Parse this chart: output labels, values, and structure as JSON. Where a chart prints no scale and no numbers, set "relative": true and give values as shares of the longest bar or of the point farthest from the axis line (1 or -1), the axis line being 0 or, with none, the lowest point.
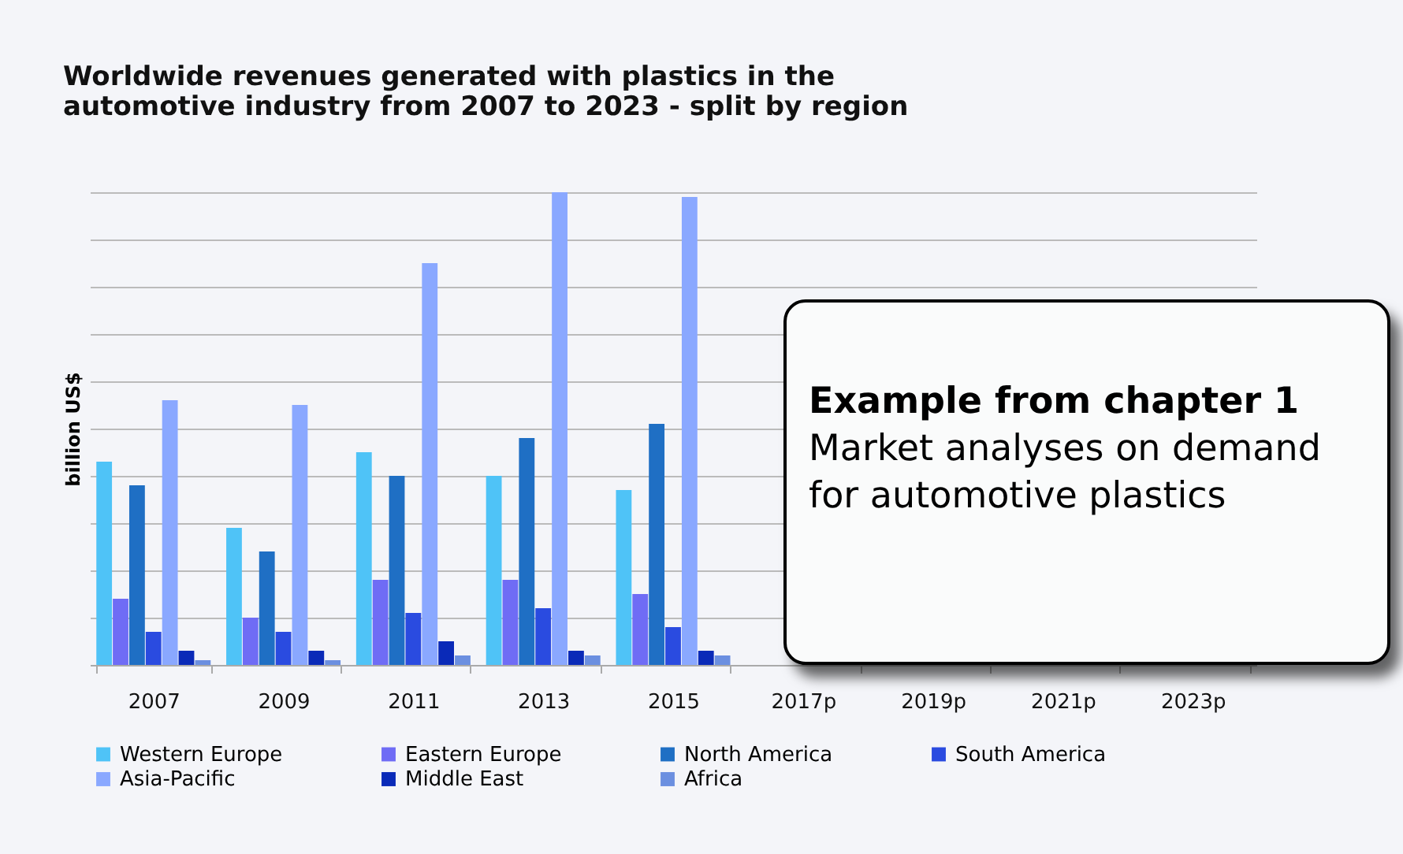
{
  "chart_data": {
    "type": "bar",
    "title": [
      "Worldwide revenues generated with plastics in the",
      "automotive industry from 2007 to 2023 - split by region"
    ],
    "ylabel": "billion US$",
    "relative": true,
    "grid": "y",
    "legend": "bottom",
    "categories": [
      "2007",
      "2009",
      "2011",
      "2013",
      "2015",
      "2017p",
      "2019p",
      "2021p",
      "2023p"
    ],
    "series": [
      {
        "name": "Western Europe",
        "color": "#4fc3f7",
        "values": [
          0.43,
          0.29,
          0.45,
          0.4,
          0.37,
          null,
          null,
          null,
          null
        ]
      },
      {
        "name": "Eastern Europe",
        "color": "#6f6cf5",
        "values": [
          0.14,
          0.1,
          0.18,
          0.18,
          0.15,
          null,
          null,
          null,
          null
        ]
      },
      {
        "name": "North America",
        "color": "#1f6fc4",
        "values": [
          0.38,
          0.24,
          0.4,
          0.48,
          0.51,
          null,
          null,
          null,
          null
        ]
      },
      {
        "name": "South America",
        "color": "#2a4be0",
        "values": [
          0.07,
          0.07,
          0.11,
          0.12,
          0.08,
          null,
          null,
          null,
          null
        ]
      },
      {
        "name": "Asia-Pacific",
        "color": "#8aa8ff",
        "values": [
          0.56,
          0.55,
          0.85,
          1,
          0.99,
          null,
          null,
          null,
          null
        ]
      },
      {
        "name": "Middle East",
        "color": "#0a2ab8",
        "values": [
          0.03,
          0.03,
          0.05,
          0.03,
          0.03,
          null,
          null,
          null,
          null
        ]
      },
      {
        "name": "Africa",
        "color": "#6b8fe0",
        "values": [
          0.01,
          0.01,
          0.02,
          0.02,
          0.02,
          null,
          null,
          null,
          null
        ]
      }
    ],
    "annotations": [
      "Example from chapter 1",
      "Market analyses on demand for automotive plastics"
    ]
  }
}
